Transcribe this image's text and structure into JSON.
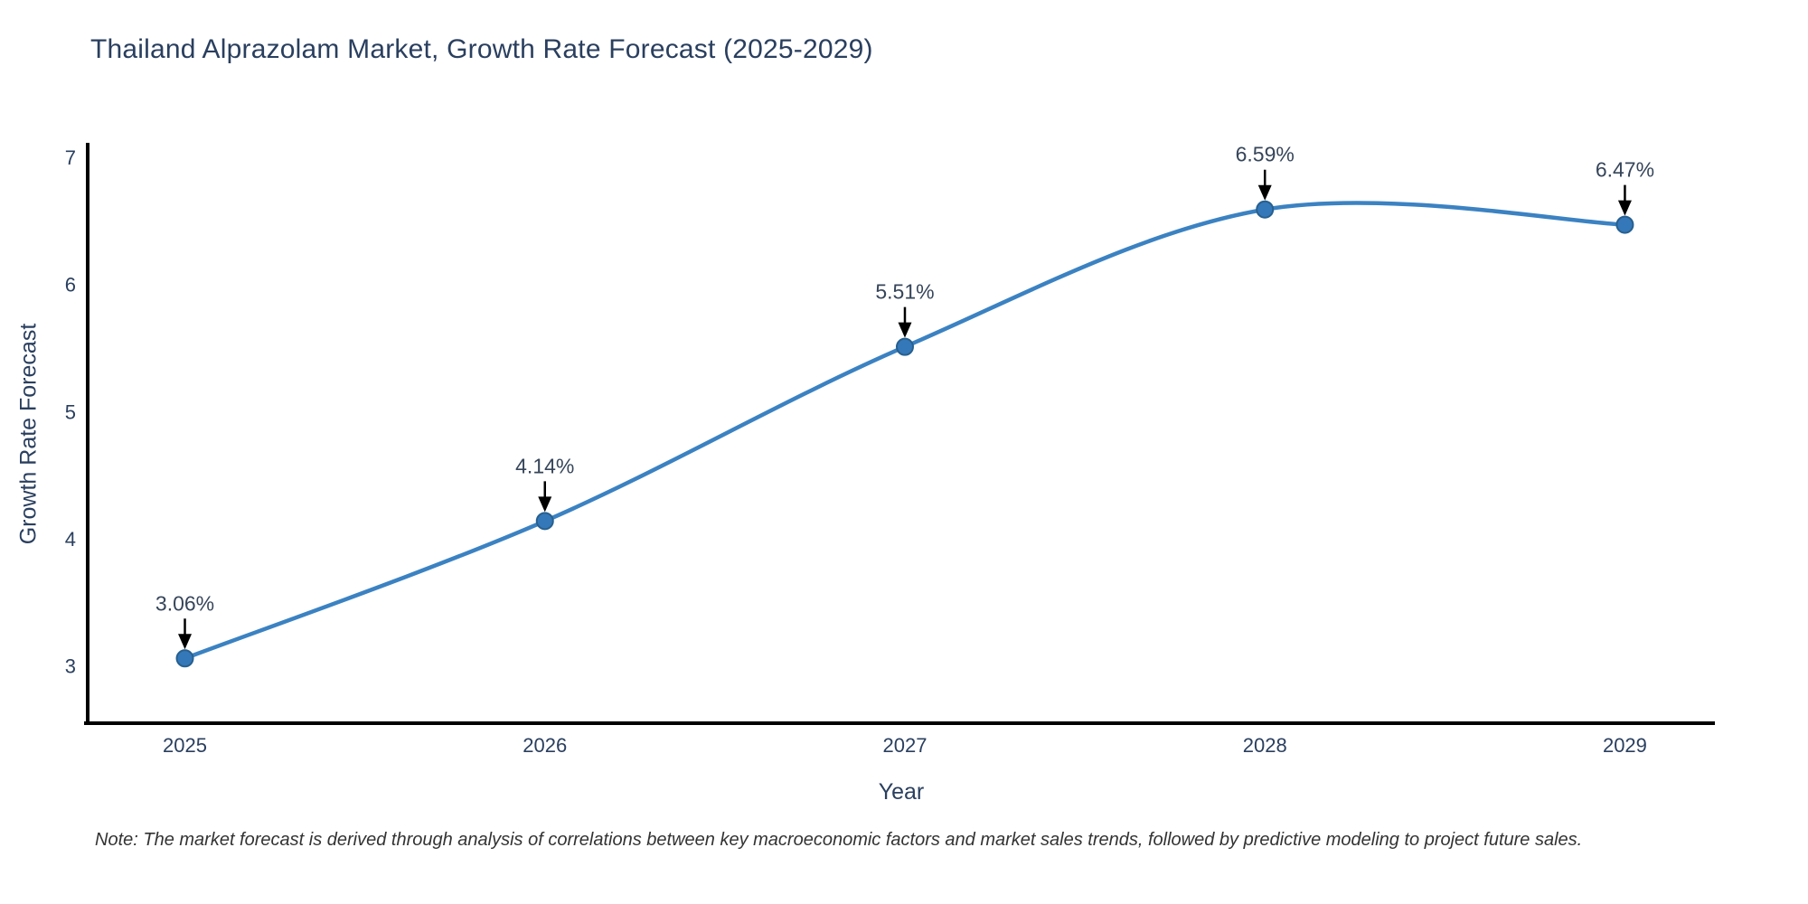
{
  "figure": {
    "note": "Note: The market forecast is derived through analysis of correlations between key macroeconomic factors and market sales trends, followed by predictive modeling to project future sales."
  },
  "chart_data": {
    "type": "line",
    "title": "Thailand Alprazolam Market, Growth Rate Forecast (2025-2029)",
    "xlabel": "Year",
    "ylabel": "Growth Rate Forecast",
    "x": [
      2025,
      2026,
      2027,
      2028,
      2029
    ],
    "series": [
      {
        "name": "Growth Rate Forecast",
        "values": [
          3.06,
          4.14,
          5.51,
          6.59,
          6.47
        ]
      }
    ],
    "point_labels": [
      "3.06%",
      "4.14%",
      "5.51%",
      "6.59%",
      "6.47%"
    ],
    "x_tick_labels": [
      "2025",
      "2026",
      "2027",
      "2028",
      "2029"
    ],
    "y_ticks": [
      3,
      4,
      5,
      6,
      7
    ],
    "x_range": [
      2024.73,
      2029.25
    ],
    "y_range": [
      2.55,
      7.1
    ],
    "line_shape": "spline",
    "grid": false,
    "legend_position": "none",
    "annotations_have_arrows": true,
    "colors": {
      "line": "#3b82c2",
      "marker_fill": "#3578b9",
      "marker_edge": "#27608f",
      "axis_line": "#000000",
      "tick_text": "#2a3f5f",
      "annotation_text": "#36455a",
      "arrow": "#000000",
      "title_text": "#2a3f5f",
      "note_text": "#333333",
      "background": "#ffffff"
    }
  }
}
